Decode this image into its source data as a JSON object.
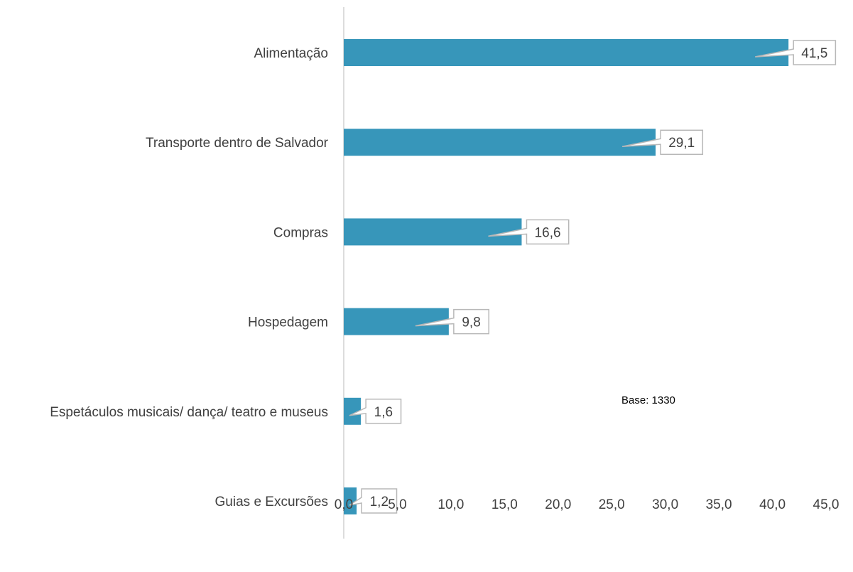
{
  "chart_data": {
    "type": "bar",
    "orientation": "horizontal",
    "categories": [
      "Alimentação",
      "Transporte dentro de Salvador",
      "Compras",
      "Hospedagem",
      "Espetáculos musicais/ dança/ teatro e museus",
      "Guias e Excursões"
    ],
    "values": [
      41.5,
      29.1,
      16.6,
      9.8,
      1.6,
      1.2
    ],
    "value_labels": [
      "41,5",
      "29,1",
      "16,6",
      "9,8",
      "1,6",
      "1,2"
    ],
    "xlim": [
      0,
      45
    ],
    "x_ticks": [
      0,
      5,
      10,
      15,
      20,
      25,
      30,
      35,
      40,
      45
    ],
    "x_tick_labels": [
      "0,0",
      "5,0",
      "10,0",
      "15,0",
      "20,0",
      "25,0",
      "30,0",
      "35,0",
      "40,0",
      "45,0"
    ],
    "title": "",
    "xlabel": "",
    "ylabel": "",
    "grid": false,
    "legend": "none",
    "annotation": "Base: 1330"
  },
  "colors": {
    "bar": "#3796BA",
    "axis": "#D0D0D0",
    "callout_border": "#B8B8B8",
    "text": "#404040"
  }
}
